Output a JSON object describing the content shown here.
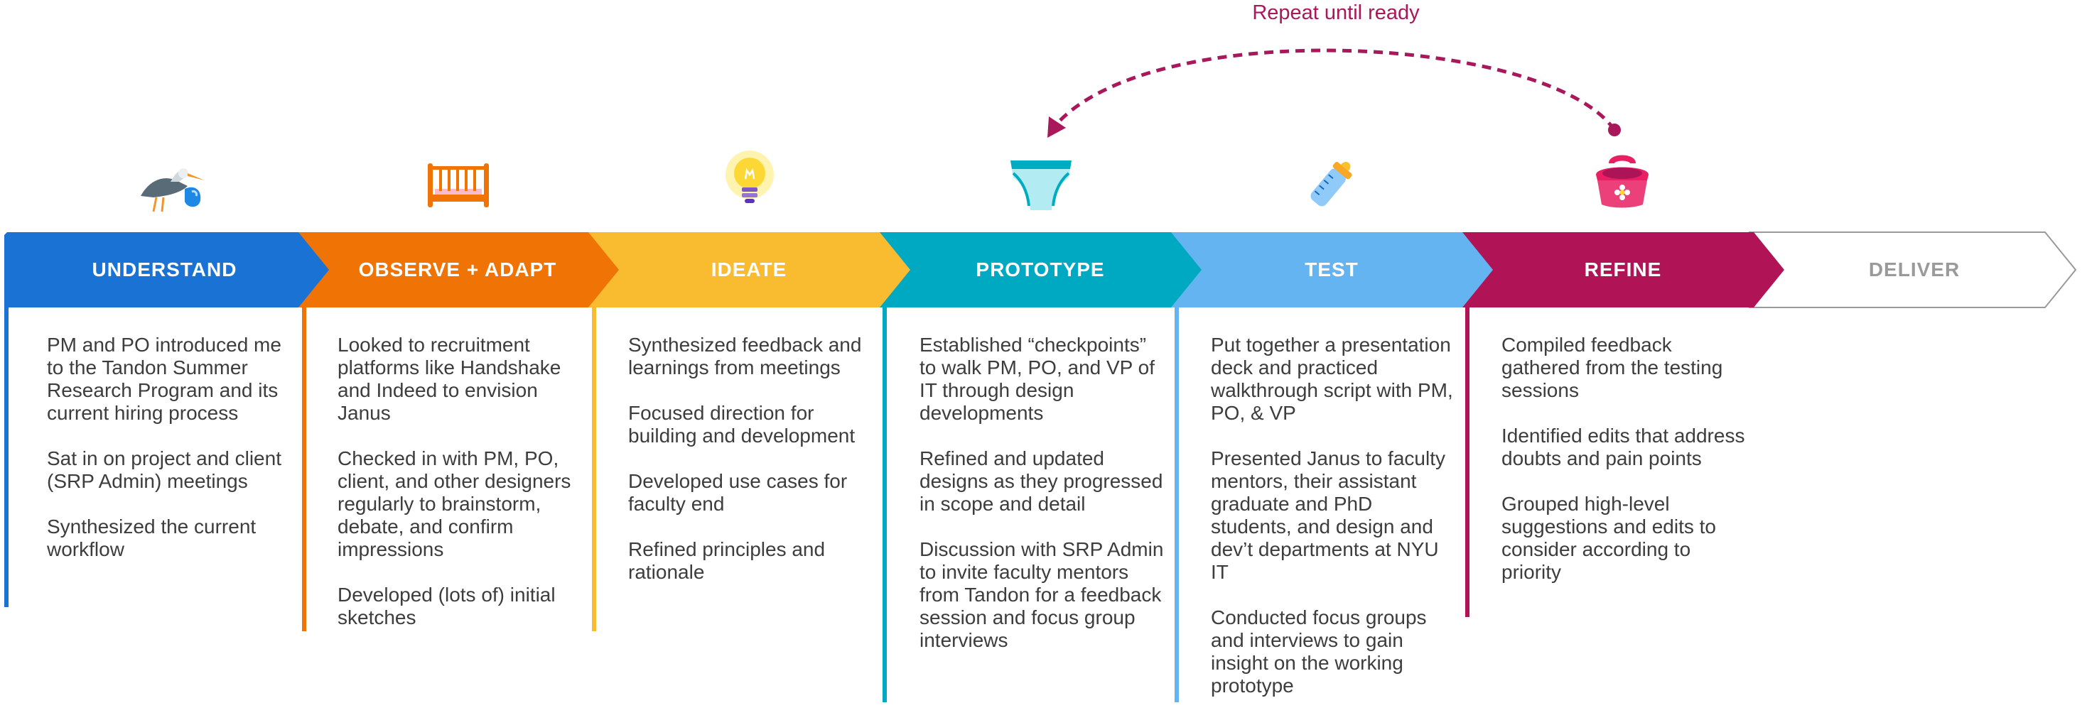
{
  "loop": {
    "label": "Repeat until ready"
  },
  "phases": [
    {
      "name": "UNDERSTAND",
      "color": "#1a73d4",
      "text_color": "#ffffff",
      "icon": "stork-icon",
      "items": [
        "PM and PO introduced me to the Tandon Summer Research Program and its current hiring process",
        "Sat in on project and client (SRP Admin) meetings",
        "Synthesized the current workflow"
      ]
    },
    {
      "name": "OBSERVE + ADAPT",
      "color": "#f07405",
      "text_color": "#ffffff",
      "icon": "crib-icon",
      "items": [
        "Looked to recruitment platforms like Handshake and Indeed to envision Janus",
        "Checked in with PM, PO, client, and other designers regularly to brainstorm, debate, and confirm impressions",
        "Developed (lots of) initial sketches"
      ]
    },
    {
      "name": "IDEATE",
      "color": "#f9bb30",
      "text_color": "#ffffff",
      "icon": "lightbulb-icon",
      "items": [
        "Synthesized feedback and learnings from meetings",
        "Focused direction for building and development",
        "Developed use cases for faculty end",
        "Refined principles and rationale"
      ]
    },
    {
      "name": "PROTOTYPE",
      "color": "#00a9c2",
      "text_color": "#ffffff",
      "icon": "diaper-icon",
      "items": [
        "Established “checkpoints” to walk PM, PO, and VP of IT through design developments",
        "Refined and updated designs as they progressed in scope and detail",
        "Discussion with SRP Admin to invite faculty mentors from Tandon for a feedback session and focus group interviews"
      ]
    },
    {
      "name": "TEST",
      "color": "#64b4f2",
      "text_color": "#ffffff",
      "icon": "baby-bottle-icon",
      "items": [
        "Put together a presentation deck and practiced walkthrough script with PM, PO, & VP",
        "Presented Janus to faculty mentors, their assistant graduate and PhD students, and design and dev’t departments at NYU IT",
        "Conducted focus groups and interviews to gain insight on the working prototype"
      ]
    },
    {
      "name": "REFINE",
      "color": "#b01457",
      "text_color": "#ffffff",
      "icon": "potty-icon",
      "items": [
        "Compiled feedback gathered from the testing sessions",
        "Identified edits that address doubts and pain points",
        "Grouped high-level suggestions and edits to consider according to priority"
      ]
    },
    {
      "name": "DELIVER",
      "color": "#ffffff",
      "text_color": "#9a9a9a",
      "icon": "",
      "items": []
    }
  ]
}
